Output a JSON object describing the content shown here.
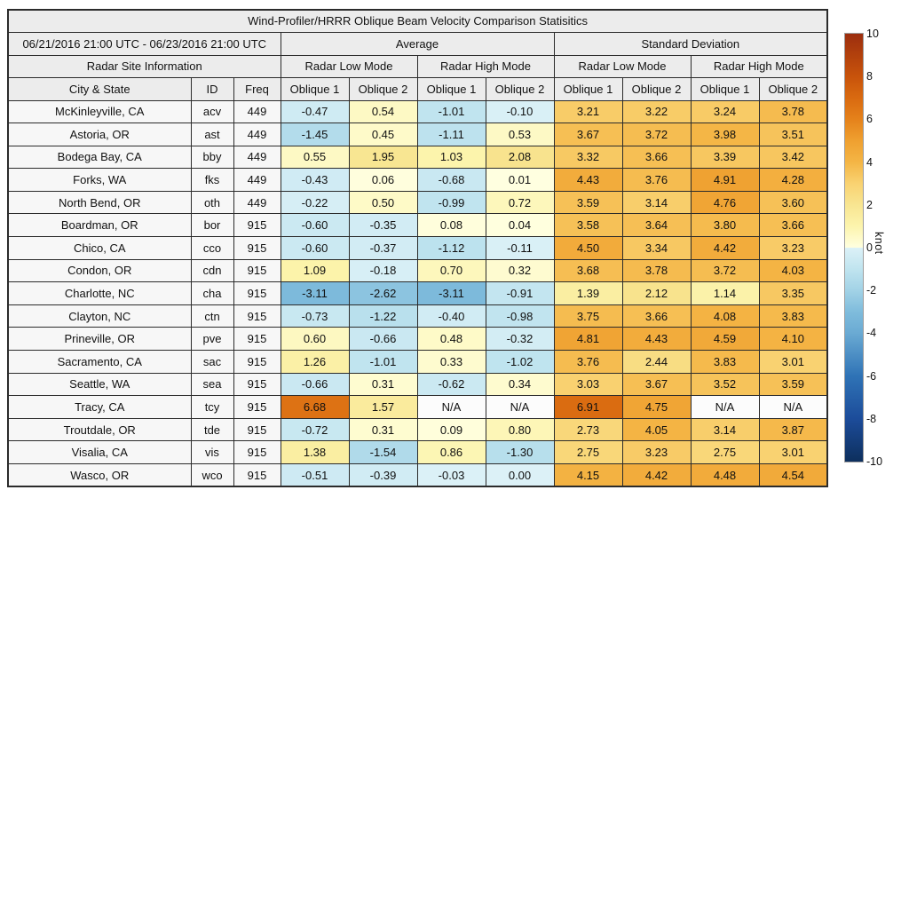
{
  "chart_data": {
    "type": "heatmap",
    "title": "Wind-Profiler/HRRR Oblique Beam Velocity Comparison Statisitics",
    "header": {
      "date_range": "06/21/2016 21:00 UTC - 06/23/2016 21:00 UTC",
      "group_average": "Average",
      "group_stddev": "Standard Deviation",
      "site_info": "Radar Site Information",
      "modes": [
        "Radar Low Mode",
        "Radar High Mode",
        "Radar Low Mode",
        "Radar High Mode"
      ],
      "columns": [
        "City & State",
        "ID",
        "Freq",
        "Oblique 1",
        "Oblique 2",
        "Oblique 1",
        "Oblique 2",
        "Oblique 1",
        "Oblique 2",
        "Oblique 1",
        "Oblique 2"
      ]
    },
    "rows": [
      {
        "city": "McKinleyville, CA",
        "id": "acv",
        "freq": "449",
        "values": [
          "-0.47",
          "0.54",
          "-1.01",
          "-0.10",
          "3.21",
          "3.22",
          "3.24",
          "3.78"
        ]
      },
      {
        "city": "Astoria, OR",
        "id": "ast",
        "freq": "449",
        "values": [
          "-1.45",
          "0.45",
          "-1.11",
          "0.53",
          "3.67",
          "3.72",
          "3.98",
          "3.51"
        ]
      },
      {
        "city": "Bodega Bay, CA",
        "id": "bby",
        "freq": "449",
        "values": [
          "0.55",
          "1.95",
          "1.03",
          "2.08",
          "3.32",
          "3.66",
          "3.39",
          "3.42"
        ]
      },
      {
        "city": "Forks, WA",
        "id": "fks",
        "freq": "449",
        "values": [
          "-0.43",
          "0.06",
          "-0.68",
          "0.01",
          "4.43",
          "3.76",
          "4.91",
          "4.28"
        ]
      },
      {
        "city": "North Bend, OR",
        "id": "oth",
        "freq": "449",
        "values": [
          "-0.22",
          "0.50",
          "-0.99",
          "0.72",
          "3.59",
          "3.14",
          "4.76",
          "3.60"
        ]
      },
      {
        "city": "Boardman, OR",
        "id": "bor",
        "freq": "915",
        "values": [
          "-0.60",
          "-0.35",
          "0.08",
          "0.04",
          "3.58",
          "3.64",
          "3.80",
          "3.66"
        ]
      },
      {
        "city": "Chico, CA",
        "id": "cco",
        "freq": "915",
        "values": [
          "-0.60",
          "-0.37",
          "-1.12",
          "-0.11",
          "4.50",
          "3.34",
          "4.42",
          "3.23"
        ]
      },
      {
        "city": "Condon, OR",
        "id": "cdn",
        "freq": "915",
        "values": [
          "1.09",
          "-0.18",
          "0.70",
          "0.32",
          "3.68",
          "3.78",
          "3.72",
          "4.03"
        ]
      },
      {
        "city": "Charlotte, NC",
        "id": "cha",
        "freq": "915",
        "values": [
          "-3.11",
          "-2.62",
          "-3.11",
          "-0.91",
          "1.39",
          "2.12",
          "1.14",
          "3.35"
        ]
      },
      {
        "city": "Clayton, NC",
        "id": "ctn",
        "freq": "915",
        "values": [
          "-0.73",
          "-1.22",
          "-0.40",
          "-0.98",
          "3.75",
          "3.66",
          "4.08",
          "3.83"
        ]
      },
      {
        "city": "Prineville, OR",
        "id": "pve",
        "freq": "915",
        "values": [
          "0.60",
          "-0.66",
          "0.48",
          "-0.32",
          "4.81",
          "4.43",
          "4.59",
          "4.10"
        ]
      },
      {
        "city": "Sacramento, CA",
        "id": "sac",
        "freq": "915",
        "values": [
          "1.26",
          "-1.01",
          "0.33",
          "-1.02",
          "3.76",
          "2.44",
          "3.83",
          "3.01"
        ]
      },
      {
        "city": "Seattle, WA",
        "id": "sea",
        "freq": "915",
        "values": [
          "-0.66",
          "0.31",
          "-0.62",
          "0.34",
          "3.03",
          "3.67",
          "3.52",
          "3.59"
        ]
      },
      {
        "city": "Tracy, CA",
        "id": "tcy",
        "freq": "915",
        "values": [
          "6.68",
          "1.57",
          "N/A",
          "N/A",
          "6.91",
          "4.75",
          "N/A",
          "N/A"
        ]
      },
      {
        "city": "Troutdale, OR",
        "id": "tde",
        "freq": "915",
        "values": [
          "-0.72",
          "0.31",
          "0.09",
          "0.80",
          "2.73",
          "4.05",
          "3.14",
          "3.87"
        ]
      },
      {
        "city": "Visalia, CA",
        "id": "vis",
        "freq": "915",
        "values": [
          "1.38",
          "-1.54",
          "0.86",
          "-1.30",
          "2.75",
          "3.23",
          "2.75",
          "3.01"
        ]
      },
      {
        "city": "Wasco, OR",
        "id": "wco",
        "freq": "915",
        "values": [
          "-0.51",
          "-0.39",
          "-0.03",
          "0.00",
          "4.15",
          "4.42",
          "4.48",
          "4.54"
        ]
      }
    ],
    "colorbar": {
      "label": "knot",
      "min": -10,
      "max": 10,
      "ticks": [
        "10",
        "8",
        "6",
        "4",
        "2",
        "0",
        "-2",
        "-4",
        "-6",
        "-8",
        "-10"
      ],
      "stops": [
        [
          -10,
          "#0d2f5d"
        ],
        [
          -8,
          "#1c4c9a"
        ],
        [
          -6,
          "#2f73b6"
        ],
        [
          -4,
          "#6aaad3"
        ],
        [
          -3,
          "#7fbcdc"
        ],
        [
          -2,
          "#a2d2e6"
        ],
        [
          -1,
          "#c0e4ef"
        ],
        [
          -0.001,
          "#dcf1f7"
        ],
        [
          0.001,
          "#ffffe0"
        ],
        [
          1,
          "#fcf4ad"
        ],
        [
          2,
          "#f8e591"
        ],
        [
          3,
          "#f9d271"
        ],
        [
          4,
          "#f4b545"
        ],
        [
          5,
          "#efa030"
        ],
        [
          6,
          "#e5821b"
        ],
        [
          7,
          "#d96a10"
        ],
        [
          8,
          "#c8530b"
        ],
        [
          10,
          "#9c2e0e"
        ]
      ]
    },
    "colors": {
      "header_bg": "#ececec",
      "label_bg": "#f7f7f7",
      "border": "#2b2b2b",
      "na_bg": "#fcfcfc"
    }
  }
}
